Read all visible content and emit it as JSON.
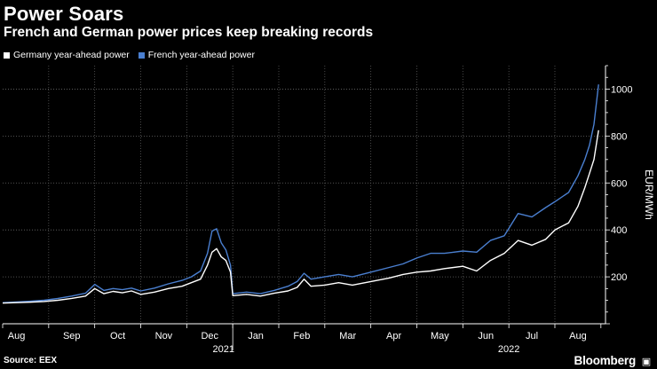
{
  "chart_data": {
    "type": "line",
    "title": "Power Soars",
    "subtitle": "French and German power prices keep breaking records",
    "ylabel": "EUR/MWh",
    "ylim": [
      0,
      1100
    ],
    "yticks": [
      200,
      400,
      600,
      800,
      1000
    ],
    "x_months": [
      "Aug",
      "Sep",
      "Oct",
      "Nov",
      "Dec",
      "Jan",
      "Feb",
      "Mar",
      "Apr",
      "May",
      "Jun",
      "Jul",
      "Aug"
    ],
    "x_years": [
      {
        "label": "2021",
        "center_index": 4.8
      },
      {
        "label": "2022",
        "center_index": 11.0
      }
    ],
    "x_unit": "months since 2021-08-01",
    "series": [
      {
        "name": "Germany year-ahead power",
        "color": "#ffffff",
        "points": [
          [
            0.0,
            88
          ],
          [
            0.3,
            90
          ],
          [
            0.6,
            92
          ],
          [
            0.9,
            95
          ],
          [
            1.2,
            100
          ],
          [
            1.5,
            108
          ],
          [
            1.8,
            118
          ],
          [
            2.0,
            150
          ],
          [
            2.2,
            128
          ],
          [
            2.4,
            138
          ],
          [
            2.6,
            132
          ],
          [
            2.8,
            140
          ],
          [
            3.0,
            125
          ],
          [
            3.3,
            135
          ],
          [
            3.6,
            150
          ],
          [
            3.9,
            160
          ],
          [
            4.1,
            175
          ],
          [
            4.3,
            190
          ],
          [
            4.45,
            250
          ],
          [
            4.55,
            305
          ],
          [
            4.65,
            320
          ],
          [
            4.75,
            285
          ],
          [
            4.85,
            270
          ],
          [
            4.95,
            220
          ],
          [
            5.0,
            120
          ],
          [
            5.3,
            125
          ],
          [
            5.6,
            118
          ],
          [
            5.9,
            130
          ],
          [
            6.2,
            140
          ],
          [
            6.4,
            155
          ],
          [
            6.55,
            190
          ],
          [
            6.7,
            160
          ],
          [
            7.0,
            165
          ],
          [
            7.3,
            175
          ],
          [
            7.6,
            165
          ],
          [
            8.0,
            180
          ],
          [
            8.4,
            195
          ],
          [
            8.7,
            210
          ],
          [
            9.0,
            220
          ],
          [
            9.3,
            225
          ],
          [
            9.6,
            235
          ],
          [
            10.0,
            245
          ],
          [
            10.3,
            225
          ],
          [
            10.6,
            270
          ],
          [
            10.9,
            300
          ],
          [
            11.2,
            355
          ],
          [
            11.5,
            335
          ],
          [
            11.8,
            360
          ],
          [
            12.0,
            400
          ],
          [
            12.3,
            430
          ],
          [
            12.5,
            500
          ],
          [
            12.65,
            580
          ],
          [
            12.75,
            640
          ],
          [
            12.85,
            700
          ],
          [
            12.95,
            825
          ]
        ]
      },
      {
        "name": "French year-ahead power",
        "color": "#4a7fd0",
        "points": [
          [
            0.0,
            90
          ],
          [
            0.3,
            93
          ],
          [
            0.6,
            96
          ],
          [
            0.9,
            100
          ],
          [
            1.2,
            108
          ],
          [
            1.5,
            118
          ],
          [
            1.8,
            130
          ],
          [
            2.0,
            168
          ],
          [
            2.2,
            142
          ],
          [
            2.4,
            150
          ],
          [
            2.6,
            145
          ],
          [
            2.8,
            152
          ],
          [
            3.0,
            140
          ],
          [
            3.3,
            152
          ],
          [
            3.6,
            170
          ],
          [
            3.9,
            185
          ],
          [
            4.1,
            200
          ],
          [
            4.3,
            225
          ],
          [
            4.45,
            300
          ],
          [
            4.55,
            395
          ],
          [
            4.65,
            405
          ],
          [
            4.75,
            345
          ],
          [
            4.85,
            315
          ],
          [
            4.95,
            250
          ],
          [
            5.0,
            128
          ],
          [
            5.3,
            135
          ],
          [
            5.6,
            128
          ],
          [
            5.9,
            142
          ],
          [
            6.2,
            160
          ],
          [
            6.4,
            180
          ],
          [
            6.55,
            215
          ],
          [
            6.7,
            190
          ],
          [
            7.0,
            200
          ],
          [
            7.3,
            210
          ],
          [
            7.6,
            200
          ],
          [
            8.0,
            220
          ],
          [
            8.4,
            240
          ],
          [
            8.7,
            255
          ],
          [
            9.0,
            280
          ],
          [
            9.3,
            300
          ],
          [
            9.6,
            300
          ],
          [
            10.0,
            310
          ],
          [
            10.3,
            305
          ],
          [
            10.6,
            355
          ],
          [
            10.9,
            375
          ],
          [
            11.2,
            470
          ],
          [
            11.5,
            455
          ],
          [
            11.8,
            495
          ],
          [
            12.0,
            520
          ],
          [
            12.3,
            560
          ],
          [
            12.5,
            630
          ],
          [
            12.65,
            700
          ],
          [
            12.75,
            760
          ],
          [
            12.85,
            850
          ],
          [
            12.95,
            1020
          ]
        ]
      }
    ]
  },
  "source": "Source: EEX",
  "brand": "Bloomberg"
}
